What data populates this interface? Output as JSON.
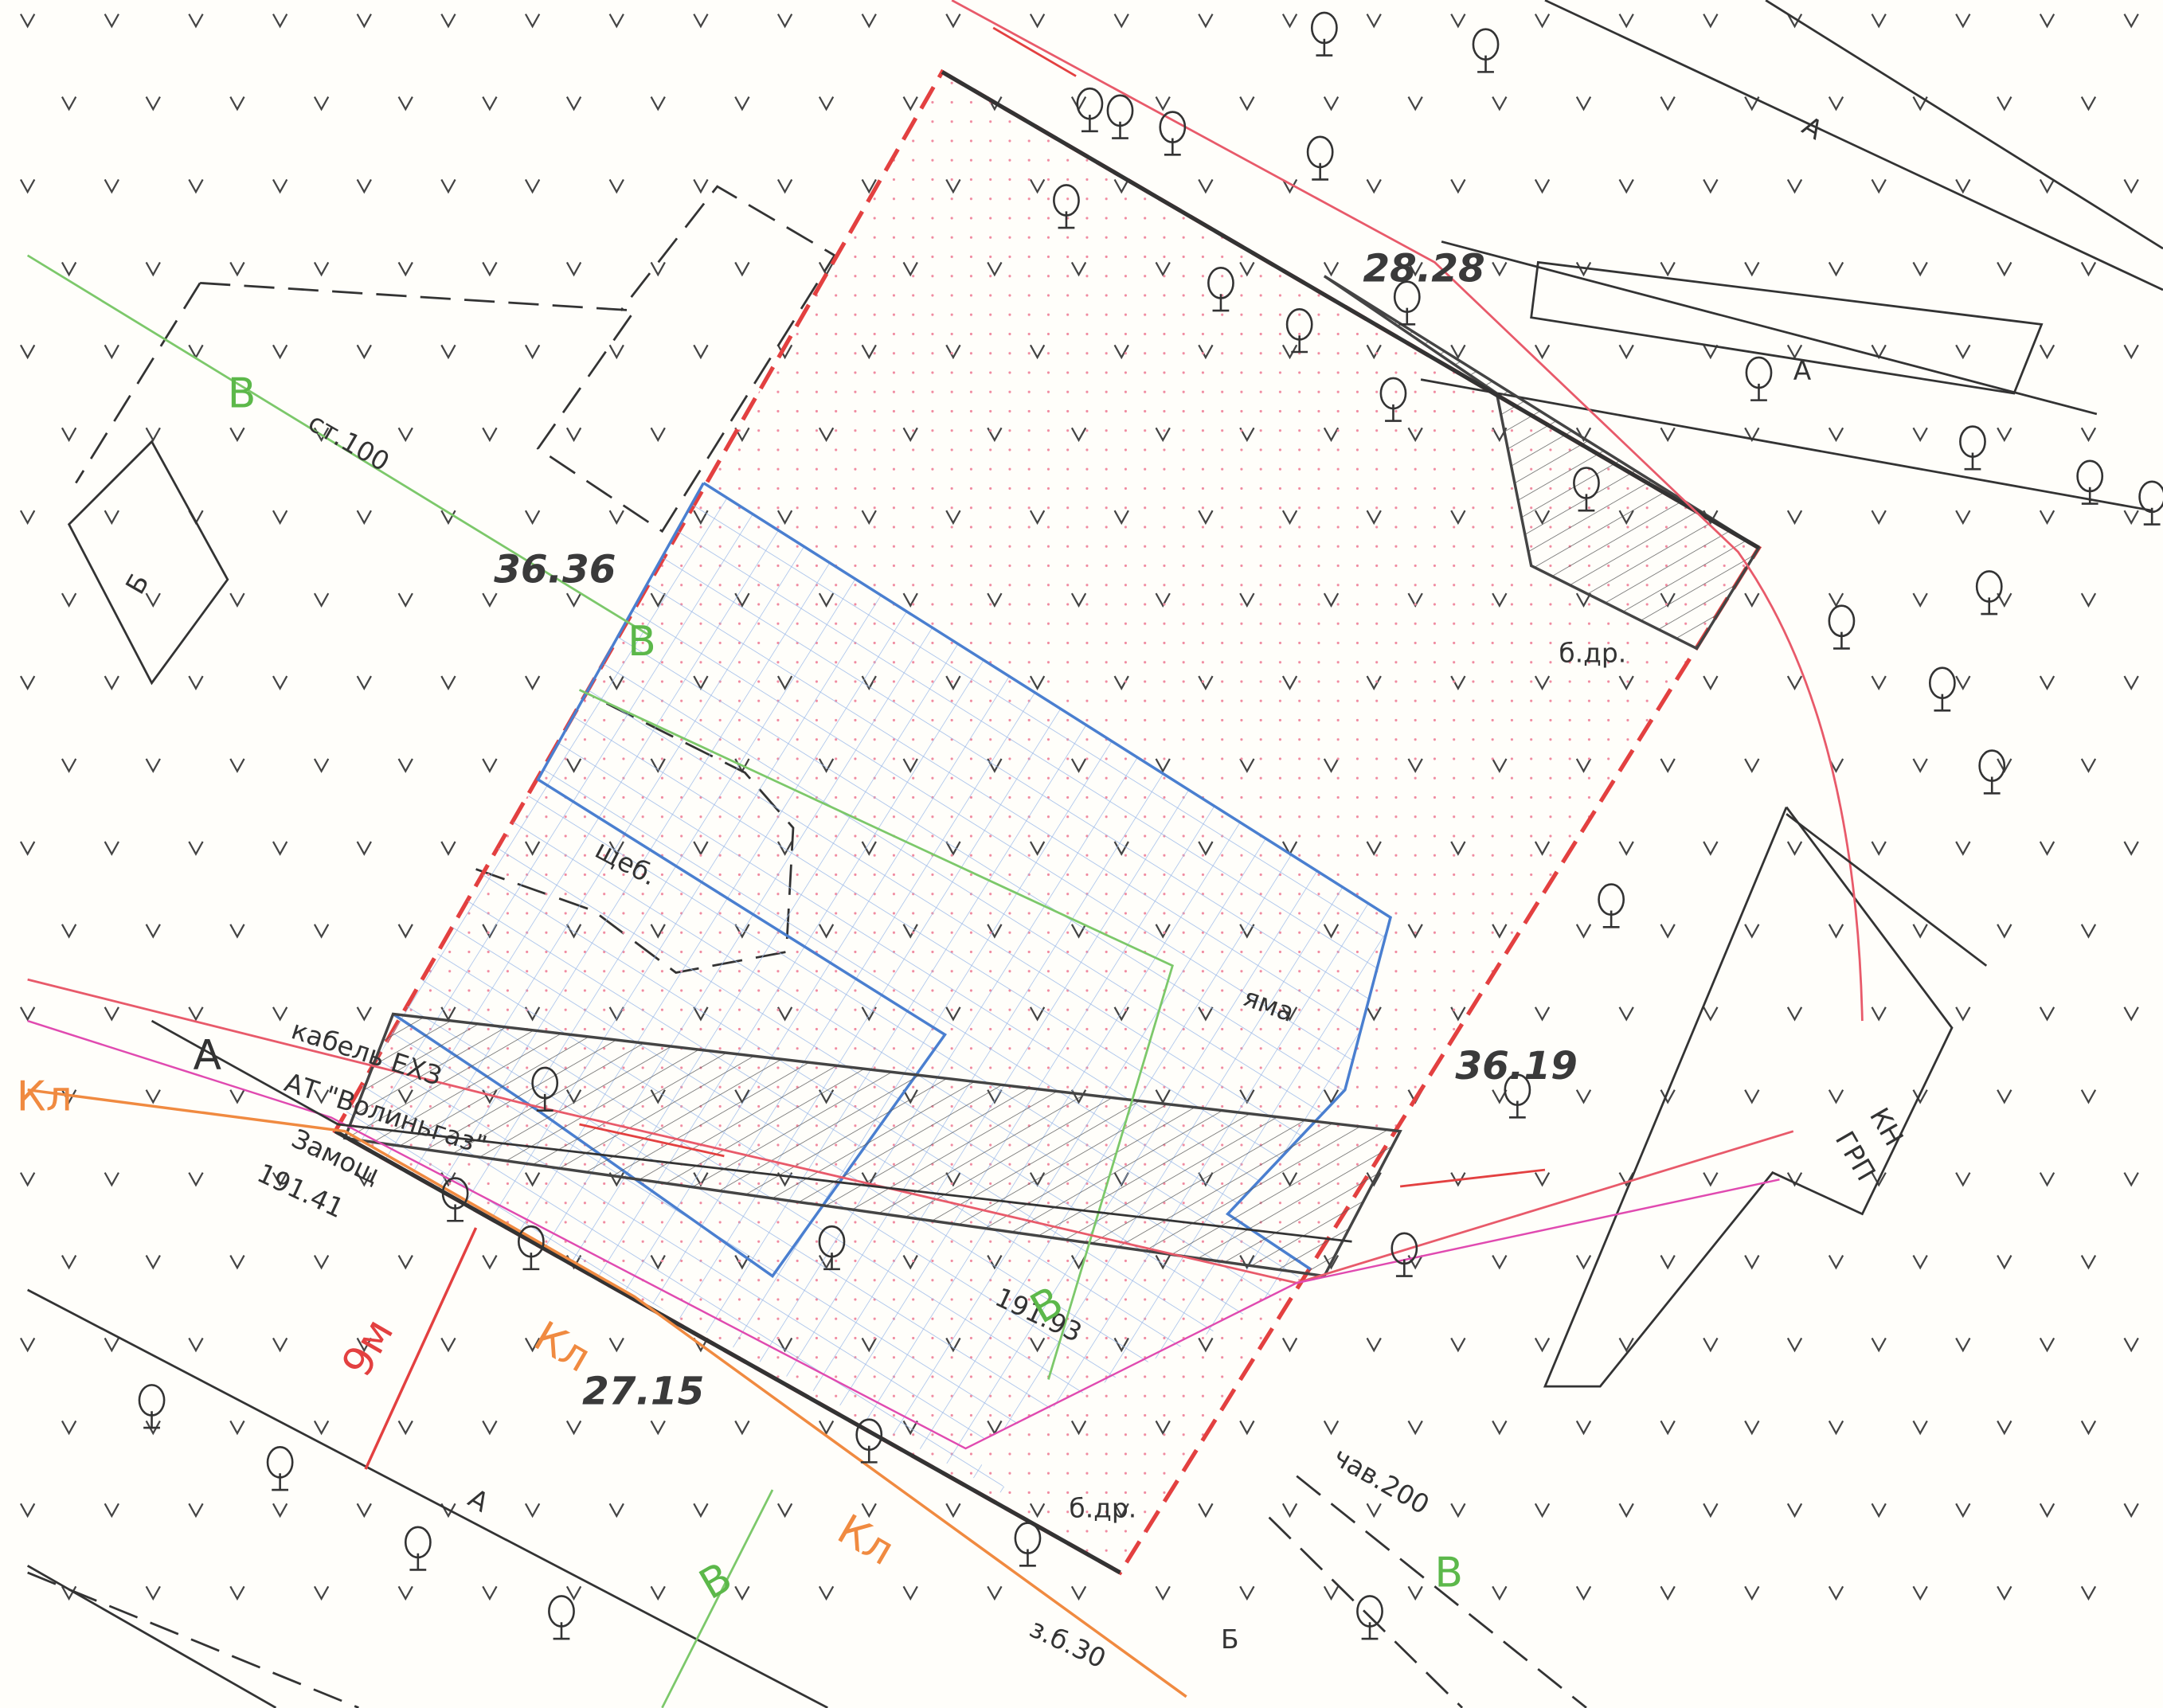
{
  "parcel": {
    "sides": [
      "36.36",
      "28.28",
      "36.19",
      "27.15"
    ]
  },
  "elevations": [
    "191.41",
    "191.93"
  ],
  "labels": {
    "pipe_st": "ст.100",
    "pipe_chav": "чав.200",
    "pipe_zb": "з.б.30",
    "gravel": "щеб.",
    "cable": "кабель ЕХЗ",
    "company": "АТ \"Волиньгаз\"",
    "zamosch": "Замощ",
    "tree_a": "б.др.",
    "tree_b": "б.др.",
    "pit": "яма",
    "kn": "КН",
    "grp": "ГРП",
    "distance": "9м"
  },
  "utilities": {
    "water": "В",
    "cable": "Кл"
  },
  "zones": {
    "a": "А",
    "b": "Б"
  }
}
